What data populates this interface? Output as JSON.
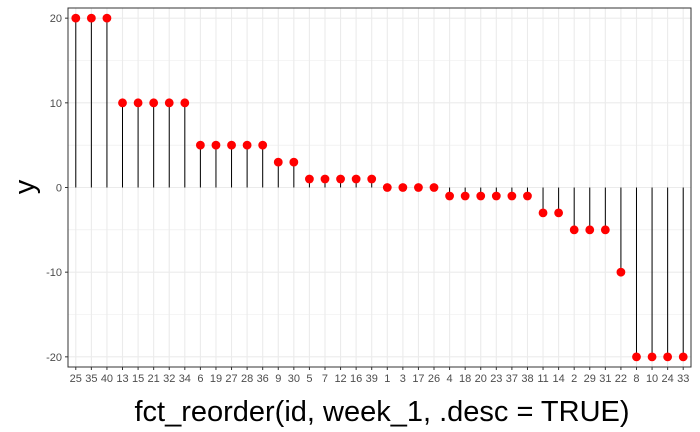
{
  "chart_data": {
    "type": "lollipop",
    "xlabel": "fct_reorder(id, week_1, .desc = TRUE)",
    "ylabel": "y",
    "categories": [
      "25",
      "35",
      "40",
      "13",
      "15",
      "21",
      "32",
      "34",
      "6",
      "19",
      "27",
      "28",
      "36",
      "9",
      "30",
      "5",
      "7",
      "12",
      "16",
      "39",
      "1",
      "3",
      "17",
      "26",
      "4",
      "18",
      "20",
      "23",
      "37",
      "38",
      "11",
      "14",
      "2",
      "29",
      "31",
      "22",
      "8",
      "10",
      "24",
      "33"
    ],
    "values": [
      20,
      20,
      20,
      10,
      10,
      10,
      10,
      10,
      5,
      5,
      5,
      5,
      5,
      3,
      3,
      1,
      1,
      1,
      1,
      1,
      0,
      0,
      0,
      0,
      -1,
      -1,
      -1,
      -1,
      -1,
      -1,
      -3,
      -3,
      -5,
      -5,
      -5,
      -10,
      -20,
      -20,
      -20,
      -20
    ],
    "y_ticks": [
      -20,
      -10,
      0,
      10,
      20
    ],
    "y_tick_labels": [
      "-20",
      "-10",
      "0",
      "10",
      "20"
    ],
    "ylim": [
      -21.2,
      21.2
    ],
    "grid": true,
    "theme": "bw",
    "colors": {
      "point": "#ff0000",
      "segment": "#000000",
      "grid": "#ebebeb",
      "panel_border": "#333333"
    }
  }
}
